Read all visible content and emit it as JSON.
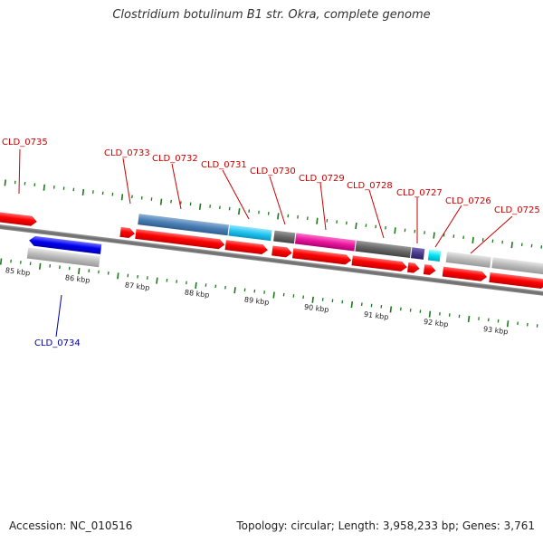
{
  "title": "Clostridium botulinum B1 str. Okra, complete genome",
  "accession": "Accession: NC_010516",
  "topology": "Topology: circular; Length: 3,958,233 bp; Genes: 3,761",
  "kbp_ticks": [
    "85 kbp",
    "86 kbp",
    "87 kbp",
    "88 kbp",
    "89 kbp",
    "90 kbp",
    "91 kbp",
    "92 kbp",
    "93 kbp"
  ],
  "genes": [
    {
      "id": "CLD_0735",
      "color": "#cc0000"
    },
    {
      "id": "CLD_0733",
      "color": "#cc0000"
    },
    {
      "id": "CLD_0732",
      "color": "#cc0000"
    },
    {
      "id": "CLD_0731",
      "color": "#cc0000"
    },
    {
      "id": "CLD_0730",
      "color": "#cc0000"
    },
    {
      "id": "CLD_0729",
      "color": "#cc0000"
    },
    {
      "id": "CLD_0728",
      "color": "#cc0000"
    },
    {
      "id": "CLD_0727",
      "color": "#cc0000"
    },
    {
      "id": "CLD_0726",
      "color": "#cc0000"
    },
    {
      "id": "CLD_0725",
      "color": "#cc0000"
    },
    {
      "id": "CLD_0734",
      "color": "#0000aa"
    }
  ],
  "colors": {
    "forward_cds": "#ff0000",
    "reverse_cds": "#0000ee",
    "backbone": "#777777",
    "ticks": "#1a7a1a",
    "cog_blue": "#4a7fb5",
    "cog_cyan": "#22c4ee",
    "cog_magenta": "#e8179c",
    "cog_gray": "#666666",
    "cog_purple": "#4a3a8a",
    "cog_light_gray": "#bbbbbb"
  }
}
